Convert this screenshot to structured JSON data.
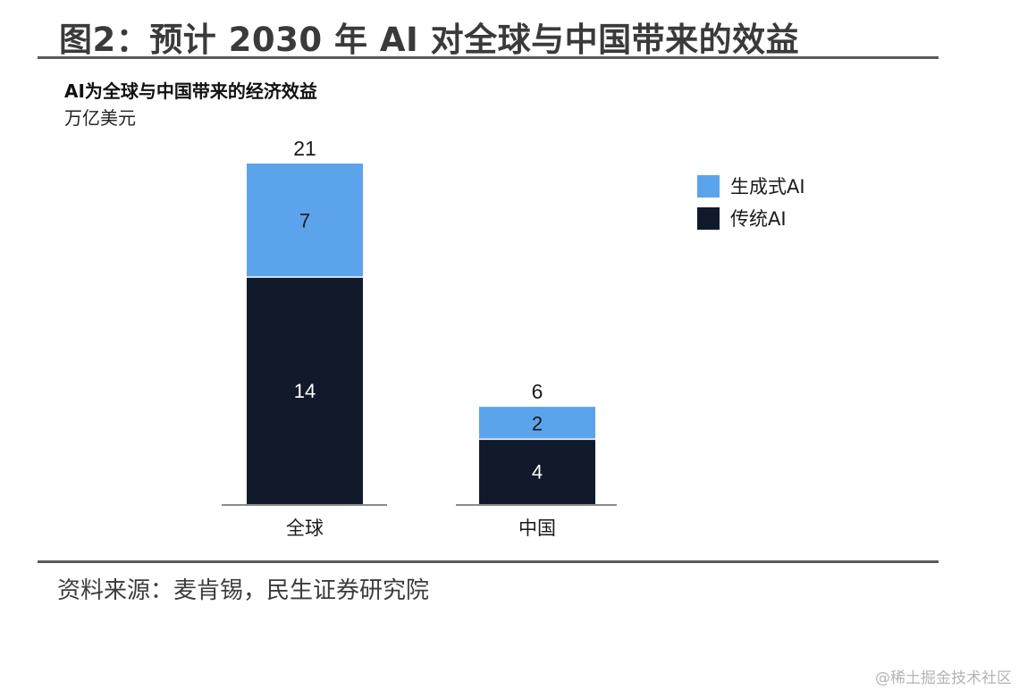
{
  "figure": {
    "title": "图2：预计 2030 年 AI 对全球与中国带来的效益",
    "source": "资料来源：麦肯锡，民生证券研究院",
    "watermark": "@稀土掘金技术社区"
  },
  "colors": {
    "generative": "#5ba4ec",
    "traditional": "#111a2a",
    "rule": "#5a5a5a",
    "baseline": "#8a8a8a"
  },
  "chart_data": {
    "type": "bar",
    "stacked": true,
    "title": "AI为全球与中国带来的经济效益",
    "unit": "万亿美元",
    "categories": [
      "全球",
      "中国"
    ],
    "series": [
      {
        "name": "传统AI",
        "values": [
          14,
          4
        ]
      },
      {
        "name": "生成式AI",
        "values": [
          7,
          2
        ]
      }
    ],
    "totals": [
      21,
      6
    ],
    "ylim": [
      0,
      21
    ],
    "grid": false,
    "legend_position": "right"
  }
}
